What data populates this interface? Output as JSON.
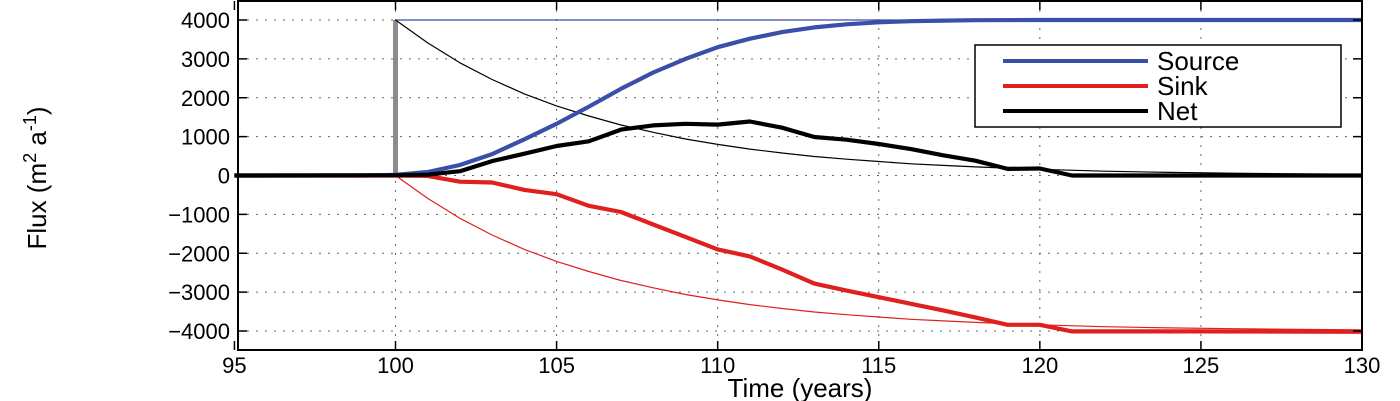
{
  "chart_data": {
    "type": "line",
    "xlabel": "Time (years)",
    "ylabel": {
      "prefix": "Flux (m",
      "sup1": "2",
      "mid": " a",
      "sup2": "-1",
      "suffix": ")"
    },
    "xlim": [
      95,
      130
    ],
    "ylim": [
      -4200,
      4200
    ],
    "xticks": [
      95,
      100,
      105,
      110,
      115,
      120,
      125,
      130
    ],
    "yticks": [
      4000,
      3000,
      2000,
      1000,
      0,
      -1000,
      -2000,
      -3000,
      -4000
    ],
    "ytick_labels": [
      "4000",
      "3000",
      "2000",
      "1000",
      "0",
      "−1000",
      "−2000",
      "−3000",
      "−4000"
    ],
    "grid": true,
    "legend_position": "upper-right",
    "series": [
      {
        "name": "Source",
        "color": "#3a4fa8",
        "weight": "thick",
        "in_legend": true,
        "x": [
          95,
          99,
          100,
          101,
          102,
          103,
          104,
          105,
          106,
          107,
          108,
          109,
          110,
          111,
          112,
          113,
          114,
          115,
          116,
          117,
          118,
          120,
          125,
          130
        ],
        "y": [
          0,
          0,
          15,
          90,
          270,
          550,
          930,
          1330,
          1770,
          2230,
          2650,
          3000,
          3300,
          3520,
          3690,
          3810,
          3890,
          3940,
          3970,
          3985,
          3995,
          4000,
          4000,
          4000
        ]
      },
      {
        "name": "Sink",
        "color": "#e01f1f",
        "weight": "thick",
        "in_legend": true,
        "x": [
          95,
          100,
          101,
          102,
          103,
          104,
          105,
          106,
          107,
          108,
          109,
          110,
          111,
          112,
          113,
          114,
          115,
          116,
          117,
          118,
          119,
          120,
          121,
          125,
          130
        ],
        "y": [
          0,
          0,
          -10,
          -160,
          -180,
          -370,
          -480,
          -780,
          -940,
          -1260,
          -1580,
          -1900,
          -2080,
          -2420,
          -2780,
          -2960,
          -3130,
          -3300,
          -3470,
          -3650,
          -3840,
          -3840,
          -4010,
          -4010,
          -4020
        ]
      },
      {
        "name": "Net",
        "color": "#000000",
        "weight": "thick",
        "in_legend": true,
        "x": [
          95,
          100,
          101,
          102,
          103,
          104,
          105,
          106,
          107,
          108,
          109,
          110,
          111,
          112,
          113,
          114,
          115,
          116,
          117,
          118,
          119,
          120,
          121,
          125,
          130
        ],
        "y": [
          0,
          5,
          20,
          110,
          370,
          560,
          760,
          880,
          1180,
          1290,
          1330,
          1310,
          1390,
          1230,
          990,
          920,
          810,
          680,
          520,
          380,
          170,
          180,
          0,
          0,
          0
        ]
      },
      {
        "name": "",
        "color": "#3a4fa8",
        "weight": "thin",
        "in_legend": false,
        "x": [
          100,
          130
        ],
        "y": [
          4000,
          4000
        ]
      },
      {
        "name": "",
        "color": "#000000",
        "weight": "thin",
        "in_legend": false,
        "x": [
          100,
          101,
          102,
          103,
          104,
          105,
          106,
          107,
          108,
          109,
          110,
          111,
          112,
          113,
          114,
          115,
          116,
          117,
          118,
          119,
          120,
          122,
          124,
          126,
          128,
          130
        ],
        "y": [
          4000,
          3410,
          2900,
          2470,
          2100,
          1790,
          1530,
          1300,
          1110,
          940,
          800,
          680,
          580,
          490,
          420,
          360,
          300,
          260,
          220,
          190,
          160,
          110,
          80,
          60,
          40,
          30
        ]
      },
      {
        "name": "",
        "color": "#e01f1f",
        "weight": "thin",
        "in_legend": false,
        "x": [
          100,
          101,
          102,
          103,
          104,
          105,
          106,
          107,
          108,
          109,
          110,
          111,
          112,
          113,
          114,
          115,
          116,
          117,
          118,
          119,
          120,
          122,
          124,
          126,
          128,
          130
        ],
        "y": [
          0,
          -590,
          -1100,
          -1530,
          -1900,
          -2210,
          -2470,
          -2700,
          -2890,
          -3060,
          -3200,
          -3320,
          -3420,
          -3510,
          -3580,
          -3640,
          -3700,
          -3740,
          -3780,
          -3810,
          -3840,
          -3890,
          -3920,
          -3940,
          -3960,
          -3970
        ]
      },
      {
        "name": "",
        "color": "#8c8c8c",
        "weight": "bar",
        "in_legend": false,
        "x": [
          100,
          100
        ],
        "y": [
          0,
          4000
        ]
      }
    ]
  }
}
